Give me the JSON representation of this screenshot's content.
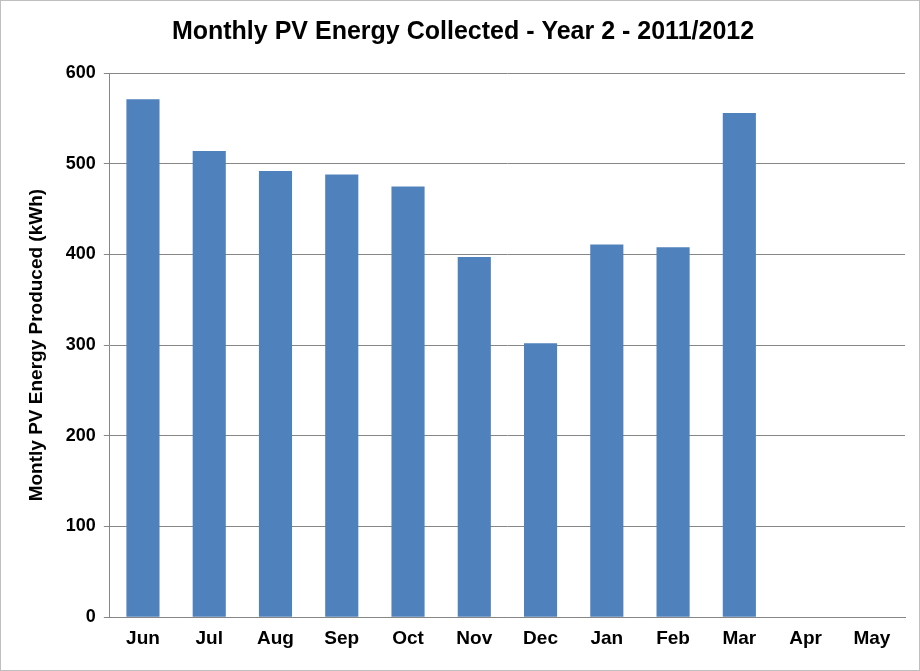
{
  "chart_data": {
    "type": "bar",
    "title": "Monthly PV Energy Collected - Year 2 - 2011/2012",
    "y_label": "Montly PV Energy Produced (kWh)",
    "categories": [
      "Jun",
      "Jul",
      "Aug",
      "Sep",
      "Oct",
      "Nov",
      "Dec",
      "Jan",
      "Feb",
      "Mar",
      "Apr",
      "May"
    ],
    "values": [
      571,
      514,
      492,
      488,
      475,
      397,
      302,
      411,
      408,
      556,
      null,
      null
    ],
    "color": "#4f81bd",
    "ylim": [
      0,
      600
    ],
    "yticks": [
      0,
      100,
      200,
      300,
      400,
      500,
      600
    ],
    "grid": true
  }
}
